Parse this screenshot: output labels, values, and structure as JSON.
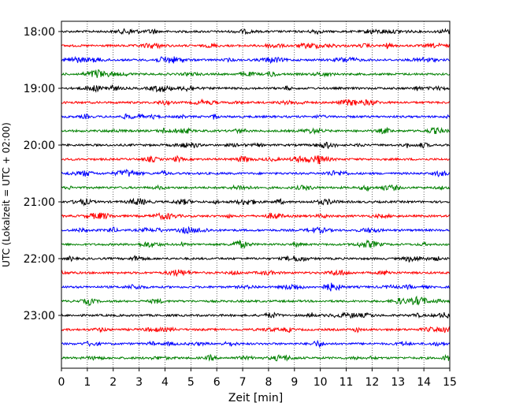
{
  "chart_data": {
    "type": "line",
    "chart_kind": "helicorder",
    "xlabel": "Zeit  [min]",
    "ylabel": "UTC (Lokalzeit = UTC + 02:00)",
    "xlim": [
      0,
      15
    ],
    "x_ticks": [
      0,
      1,
      2,
      3,
      4,
      5,
      6,
      7,
      8,
      9,
      10,
      11,
      12,
      13,
      14,
      15
    ],
    "x_grid": true,
    "grid_style": "dotted vertical lines at each minute",
    "y_tick_labels": [
      "18:00",
      "19:00",
      "20:00",
      "21:00",
      "22:00",
      "23:00"
    ],
    "trace_start_times": [
      "18:00",
      "18:15",
      "18:30",
      "18:45",
      "19:00",
      "19:15",
      "19:30",
      "19:45",
      "20:00",
      "20:15",
      "20:30",
      "20:45",
      "21:00",
      "21:15",
      "21:30",
      "21:45",
      "22:00",
      "22:15",
      "22:30",
      "22:45",
      "23:00",
      "23:15",
      "23:30",
      "23:45"
    ],
    "trace_color_cycle": [
      "#000000",
      "#ff0000",
      "#0000ff",
      "#008000"
    ],
    "trace_duration_min": 15
  }
}
